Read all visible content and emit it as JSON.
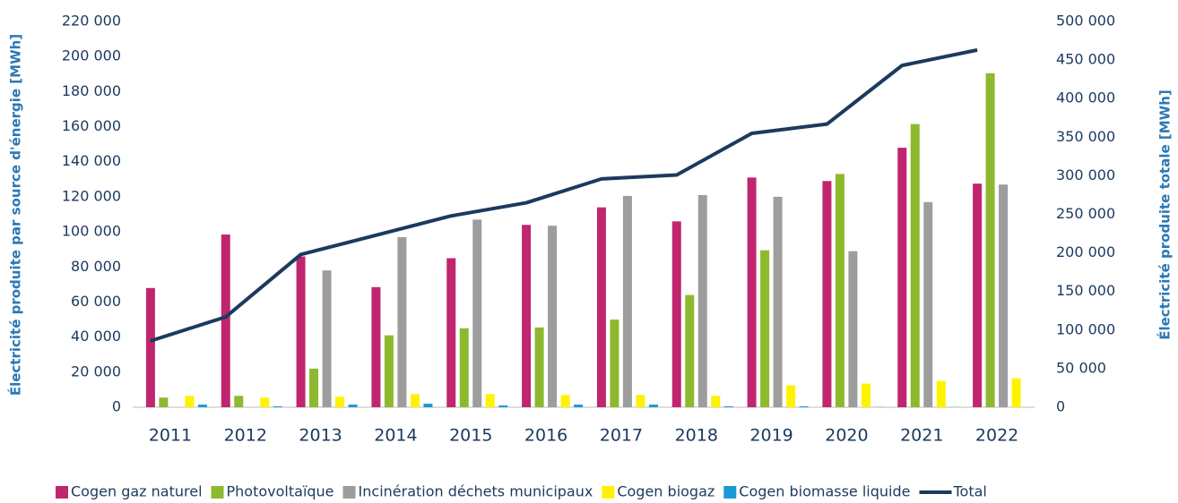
{
  "chart_data": {
    "type": "bar",
    "categories": [
      "2011",
      "2012",
      "2013",
      "2014",
      "2015",
      "2016",
      "2017",
      "2018",
      "2019",
      "2020",
      "2021",
      "2022"
    ],
    "y_label": "Électricité produite par source d'énergie [MWh]",
    "y2_label": "Électricité produite totale [MWh]",
    "ylim": [
      0,
      220000
    ],
    "yticks": [
      0,
      {
        "value": 20000,
        "label": "20 000"
      },
      {
        "value": 40000,
        "label": "40 000"
      },
      {
        "value": 60000,
        "label": "60 000"
      },
      {
        "value": 80000,
        "label": "80 000"
      },
      {
        "value": 100000,
        "label": "100 000"
      },
      {
        "value": 120000,
        "label": "120 000"
      },
      {
        "value": 140000,
        "label": "140 000"
      },
      {
        "value": 160000,
        "label": "160 000"
      },
      {
        "value": 180000,
        "label": "180 000"
      },
      {
        "value": 200000,
        "label": "200 000"
      },
      {
        "value": 220000,
        "label": "220 000"
      }
    ],
    "y2lim": [
      0,
      500000
    ],
    "y2ticks": [
      0,
      {
        "value": 50000,
        "label": "50 000"
      },
      {
        "value": 100000,
        "label": "100 000"
      },
      {
        "value": 150000,
        "label": "150 000"
      },
      {
        "value": 200000,
        "label": "200 000"
      },
      {
        "value": 250000,
        "label": "250 000"
      },
      {
        "value": 300000,
        "label": "300 000"
      },
      {
        "value": 350000,
        "label": "350 000"
      },
      {
        "value": 400000,
        "label": "400 000"
      },
      {
        "value": 450000,
        "label": "450 000"
      },
      {
        "value": 500000,
        "label": "500 000"
      }
    ],
    "grid": false,
    "legend": "bottom",
    "series": [
      {
        "name": "Cogen gaz naturel",
        "color": "#c0266f",
        "values": [
          68000,
          98500,
          86000,
          68500,
          85000,
          104000,
          114000,
          106000,
          131000,
          129000,
          148000,
          127500
        ]
      },
      {
        "name": "Photovoltaïque",
        "color": "#8db92e",
        "values": [
          5500,
          6500,
          22000,
          41000,
          45000,
          45500,
          50000,
          64000,
          89500,
          133000,
          161500,
          190500
        ]
      },
      {
        "name": "Incinération déchets municipaux",
        "color": "#9d9d9d",
        "values": [
          null,
          null,
          78000,
          97000,
          107000,
          103500,
          120500,
          121000,
          120000,
          89000,
          117000,
          127000
        ]
      },
      {
        "name": "Cogen biogaz",
        "color": "#fff200",
        "values": [
          6500,
          5500,
          6000,
          7500,
          7500,
          7000,
          7000,
          6500,
          12500,
          13500,
          15000,
          16500
        ]
      },
      {
        "name": "Cogen biomasse liquide",
        "color": "#1a9ad6",
        "values": [
          1500,
          500,
          1500,
          2000,
          1000,
          1500,
          1500,
          500,
          500,
          100,
          100,
          0
        ]
      },
      {
        "name": "Total",
        "color": "#1b3a5e",
        "type": "line",
        "axis": "y2",
        "values": [
          86000,
          117000,
          198000,
          223000,
          248000,
          265000,
          296000,
          301000,
          355000,
          367000,
          443000,
          463000
        ]
      }
    ]
  }
}
